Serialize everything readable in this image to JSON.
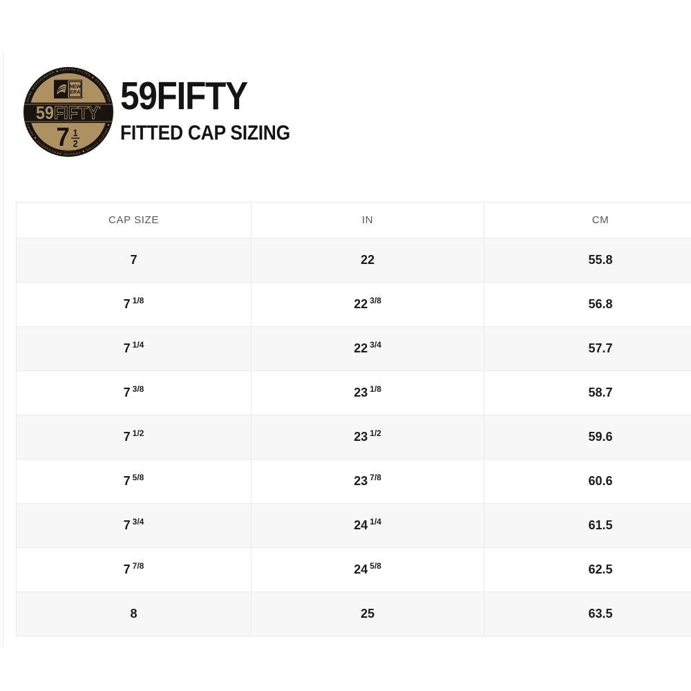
{
  "header": {
    "title": "59FIFTY",
    "subtitle": "FITTED CAP SIZING"
  },
  "logo": {
    "brand_line1": "NEW",
    "brand_line2": "ERA",
    "badge_tm": "™",
    "product_bold": "59",
    "product_outline": "FIFTY",
    "registered": "®",
    "size_whole": "7",
    "size_frac_num": "1",
    "size_frac_den": "2",
    "size_cm": "59.6cm",
    "ring_text": "◆ GENUINE MERCHANDISE ◆ 59FIFTY FITTED ◆ GENUINE MERCHANDISE ◆ 59FIFTY FITTED ◆ GENUINE MERCHANDISE ◆ 59FIFTY FITTED ◆ GENUINE MERCHANDISE ◆",
    "colors": {
      "gold": "#ae9160",
      "black": "#181410"
    }
  },
  "table": {
    "columns": [
      "CAP SIZE",
      "IN",
      "CM"
    ],
    "rows": [
      {
        "cap_size": {
          "whole": "7",
          "frac": ""
        },
        "inches": {
          "whole": "22",
          "frac": ""
        },
        "cm": "55.8"
      },
      {
        "cap_size": {
          "whole": "7",
          "frac": "1/8"
        },
        "inches": {
          "whole": "22",
          "frac": "3/8"
        },
        "cm": "56.8"
      },
      {
        "cap_size": {
          "whole": "7",
          "frac": "1/4"
        },
        "inches": {
          "whole": "22",
          "frac": "3/4"
        },
        "cm": "57.7"
      },
      {
        "cap_size": {
          "whole": "7",
          "frac": "3/8"
        },
        "inches": {
          "whole": "23",
          "frac": "1/8"
        },
        "cm": "58.7"
      },
      {
        "cap_size": {
          "whole": "7",
          "frac": "1/2"
        },
        "inches": {
          "whole": "23",
          "frac": "1/2"
        },
        "cm": "59.6"
      },
      {
        "cap_size": {
          "whole": "7",
          "frac": "5/8"
        },
        "inches": {
          "whole": "23",
          "frac": "7/8"
        },
        "cm": "60.6"
      },
      {
        "cap_size": {
          "whole": "7",
          "frac": "3/4"
        },
        "inches": {
          "whole": "24",
          "frac": "1/4"
        },
        "cm": "61.5"
      },
      {
        "cap_size": {
          "whole": "7",
          "frac": "7/8"
        },
        "inches": {
          "whole": "24",
          "frac": "5/8"
        },
        "cm": "62.5"
      },
      {
        "cap_size": {
          "whole": "8",
          "frac": ""
        },
        "inches": {
          "whole": "25",
          "frac": ""
        },
        "cm": "63.5"
      }
    ],
    "style": {
      "stripe_bg": "#f7f7f7",
      "border": "#ebebeb",
      "header_text": "#54585b",
      "cell_text": "#1b1b1b"
    }
  },
  "chart_data": {
    "type": "table",
    "title": "59FIFTY FITTED CAP SIZING",
    "columns": [
      "CAP SIZE",
      "IN",
      "CM"
    ],
    "rows": [
      [
        "7",
        "22",
        "55.8"
      ],
      [
        "7 1/8",
        "22 3/8",
        "56.8"
      ],
      [
        "7 1/4",
        "22 3/4",
        "57.7"
      ],
      [
        "7 3/8",
        "23 1/8",
        "58.7"
      ],
      [
        "7 1/2",
        "23 1/2",
        "59.6"
      ],
      [
        "7 5/8",
        "23 7/8",
        "60.6"
      ],
      [
        "7 3/4",
        "24 1/4",
        "61.5"
      ],
      [
        "7 7/8",
        "24 5/8",
        "62.5"
      ],
      [
        "8",
        "25",
        "63.5"
      ]
    ]
  }
}
